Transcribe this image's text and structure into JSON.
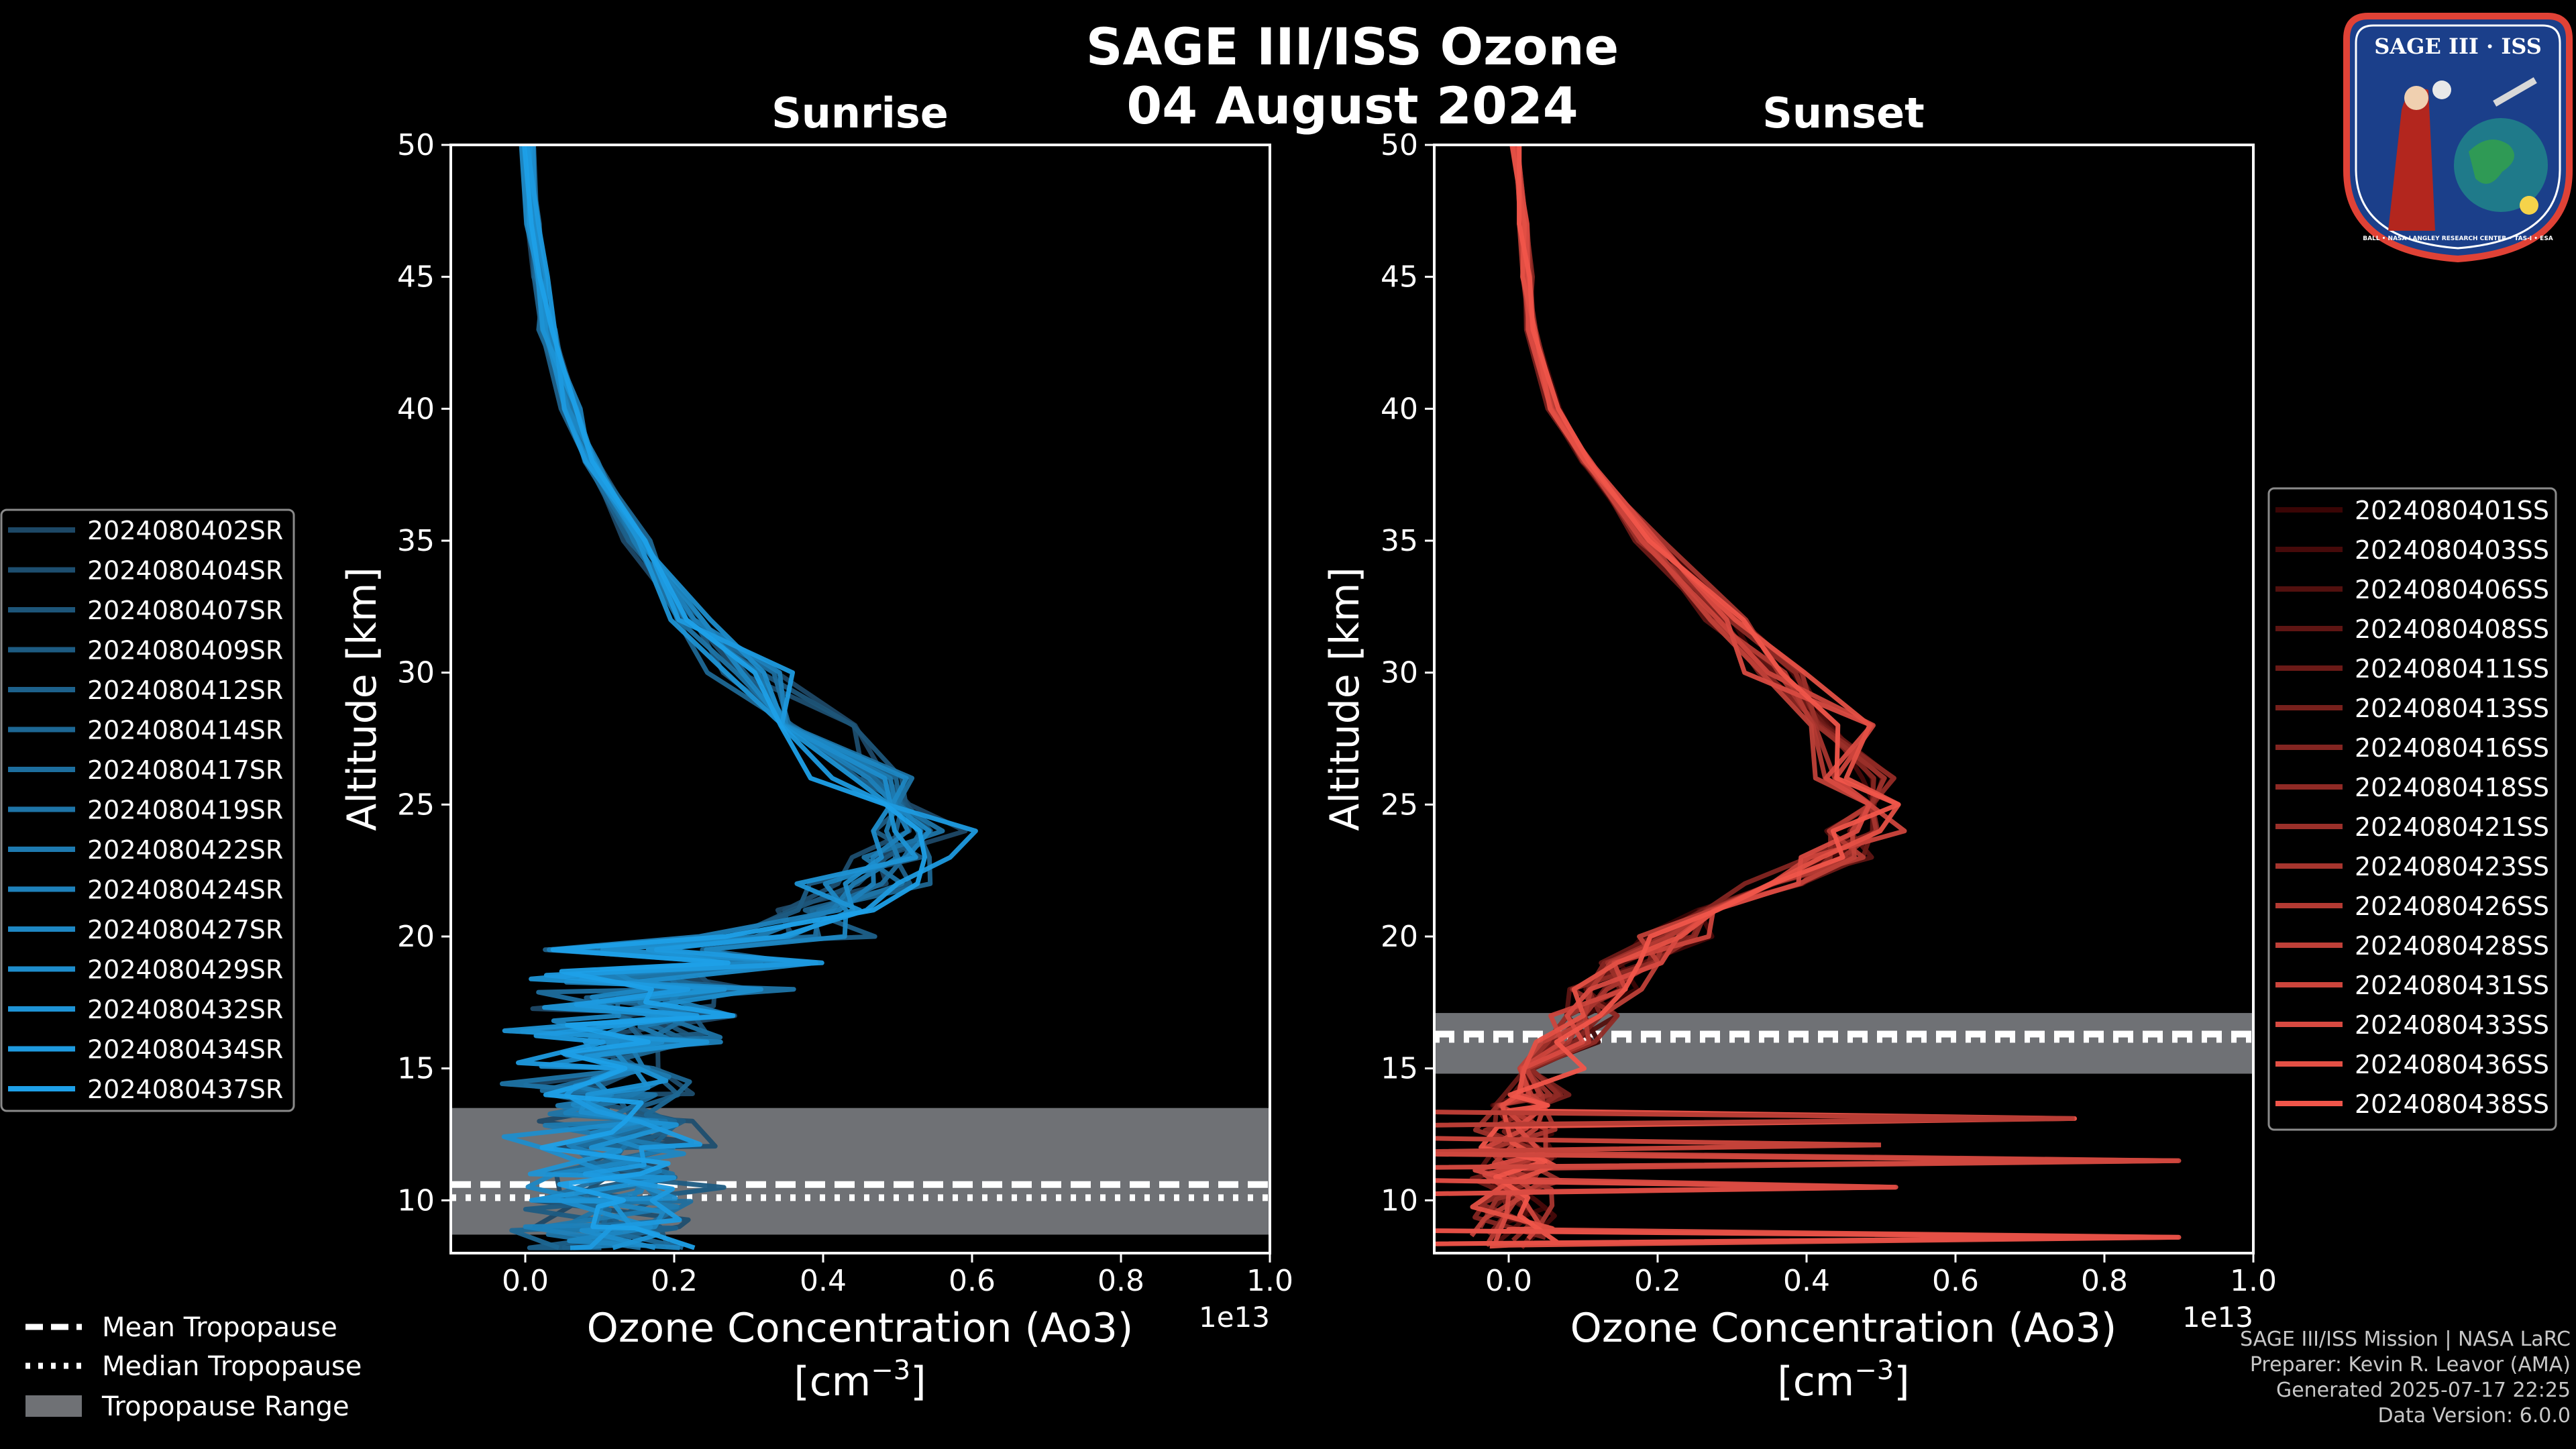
{
  "title_line1": "SAGE III/ISS Ozone",
  "title_line2": "04 August 2024",
  "logo": {
    "name": "SAGE III · ISS",
    "caption": "BALL • NASA LANGLEY RESEARCH CENTER • TAS-I • ESA"
  },
  "credits": [
    "SAGE III/ISS Mission | NASA LaRC",
    "Preparer: Kevin R. Leavor (AMA)",
    "Generated 2025-07-17 22:25",
    "Data Version: 6.0.0"
  ],
  "tropopause_legend": {
    "mean": "Mean Tropopause",
    "median": "Median Tropopause",
    "range": "Tropopause Range"
  },
  "chart_data": [
    {
      "type": "line",
      "title": "Sunrise",
      "xlabel": "Ozone Concentration (Ao3)",
      "xunit": "[cm",
      "xunit_sup": "−3",
      "xunit_close": "]",
      "offset_label": "1e13",
      "ylabel": "Altitude [km]",
      "xlim": [
        -0.1,
        1.0
      ],
      "ylim": [
        8,
        50
      ],
      "xticks": [
        0.0,
        0.2,
        0.4,
        0.6,
        0.8,
        1.0
      ],
      "xtick_labels": [
        "0.0",
        "0.2",
        "0.4",
        "0.6",
        "0.8",
        "1.0"
      ],
      "yticks": [
        10,
        15,
        20,
        25,
        30,
        35,
        40,
        45,
        50
      ],
      "ytick_labels": [
        "10",
        "15",
        "20",
        "25",
        "30",
        "35",
        "40",
        "45",
        "50"
      ],
      "tropopause": {
        "mean": 10.6,
        "median": 10.1,
        "range": [
          8.7,
          13.5
        ]
      },
      "color_dark": "#1d4866",
      "color_light": "#1ea0e8",
      "series_names": [
        "2024080402SR",
        "2024080404SR",
        "2024080407SR",
        "2024080409SR",
        "2024080412SR",
        "2024080414SR",
        "2024080417SR",
        "2024080419SR",
        "2024080422SR",
        "2024080424SR",
        "2024080427SR",
        "2024080429SR",
        "2024080432SR",
        "2024080434SR",
        "2024080437SR"
      ],
      "profile": {
        "altitude": [
          50,
          47,
          45,
          43,
          40,
          38,
          35,
          32,
          30,
          28,
          26,
          25,
          24,
          23,
          22,
          21,
          20,
          19,
          18,
          17,
          16,
          15,
          14,
          13,
          12,
          11,
          10,
          9,
          8.2
        ],
        "ozone": [
          0.002,
          0.01,
          0.02,
          0.03,
          0.06,
          0.09,
          0.15,
          0.22,
          0.3,
          0.38,
          0.46,
          0.5,
          0.52,
          0.5,
          0.46,
          0.4,
          0.35,
          0.3,
          0.24,
          0.2,
          0.17,
          0.15,
          0.13,
          0.12,
          0.11,
          0.1,
          0.09,
          0.1,
          0.12
        ]
      }
    },
    {
      "type": "line",
      "title": "Sunset",
      "xlabel": "Ozone Concentration (Ao3)",
      "xunit": "[cm",
      "xunit_sup": "−3",
      "xunit_close": "]",
      "offset_label": "1e13",
      "ylabel": "Altitude [km]",
      "xlim": [
        -0.1,
        1.0
      ],
      "ylim": [
        8,
        50
      ],
      "xticks": [
        0.0,
        0.2,
        0.4,
        0.6,
        0.8,
        1.0
      ],
      "xtick_labels": [
        "0.0",
        "0.2",
        "0.4",
        "0.6",
        "0.8",
        "1.0"
      ],
      "yticks": [
        10,
        15,
        20,
        25,
        30,
        35,
        40,
        45,
        50
      ],
      "ytick_labels": [
        "10",
        "15",
        "20",
        "25",
        "30",
        "35",
        "40",
        "45",
        "50"
      ],
      "tropopause": {
        "mean": 16.3,
        "median": 16.1,
        "range": [
          14.8,
          17.1
        ]
      },
      "color_dark": "#3a0505",
      "color_light": "#f0554a",
      "series_names": [
        "2024080401SS",
        "2024080403SS",
        "2024080406SS",
        "2024080408SS",
        "2024080411SS",
        "2024080413SS",
        "2024080416SS",
        "2024080418SS",
        "2024080421SS",
        "2024080423SS",
        "2024080426SS",
        "2024080428SS",
        "2024080431SS",
        "2024080433SS",
        "2024080436SS",
        "2024080438SS"
      ],
      "profile": {
        "altitude": [
          50,
          47,
          45,
          43,
          40,
          38,
          35,
          32,
          30,
          28,
          26,
          25,
          24,
          23,
          22,
          21,
          20,
          19,
          18,
          17,
          16,
          15,
          14
        ],
        "ozone": [
          0.01,
          0.02,
          0.025,
          0.03,
          0.06,
          0.11,
          0.19,
          0.29,
          0.36,
          0.43,
          0.47,
          0.48,
          0.47,
          0.44,
          0.37,
          0.28,
          0.22,
          0.17,
          0.13,
          0.1,
          0.08,
          0.06,
          0.04
        ]
      },
      "spikes": [
        {
          "altitude": 13.1,
          "ozone": 0.76
        },
        {
          "altitude": 12.1,
          "ozone": 0.5
        },
        {
          "altitude": 11.5,
          "ozone": 0.9
        },
        {
          "altitude": 10.5,
          "ozone": 0.52
        },
        {
          "altitude": 8.6,
          "ozone": 0.9
        }
      ]
    }
  ]
}
